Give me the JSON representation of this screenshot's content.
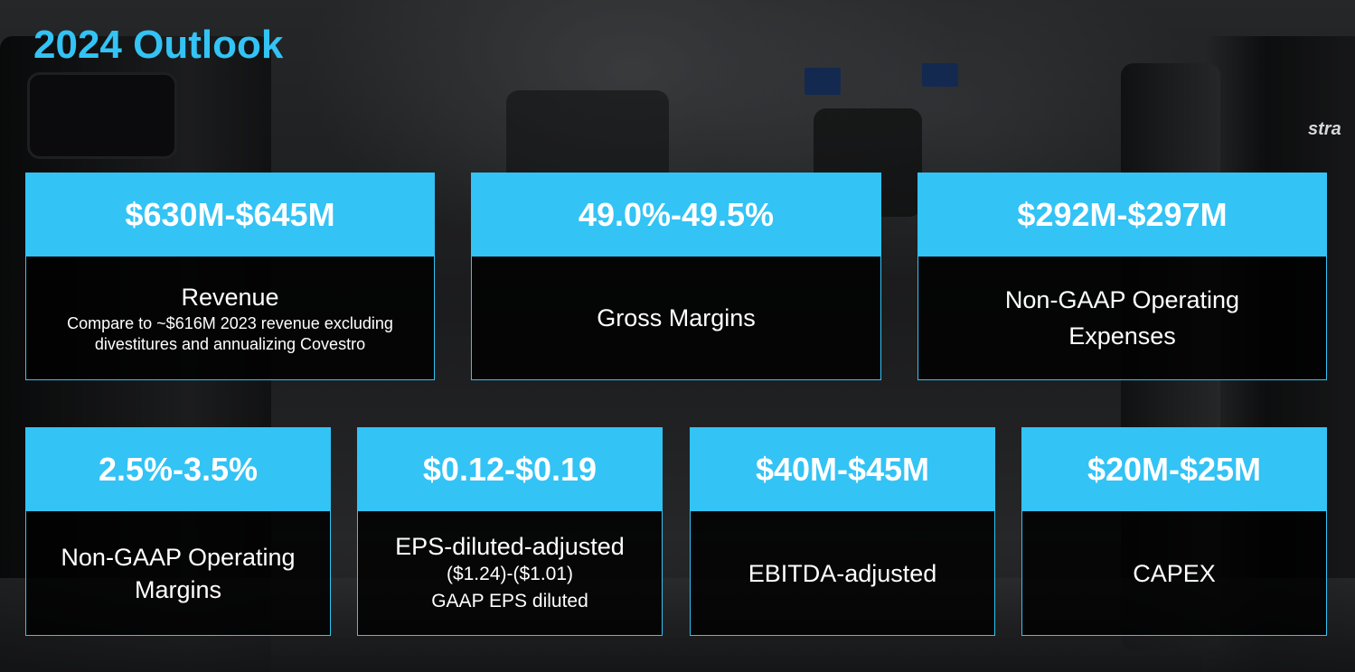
{
  "title": "2024 Outlook",
  "background": {
    "brand_text": "stra"
  },
  "colors": {
    "accent": "#33c3f5",
    "text": "#ffffff",
    "card_body": "#000000"
  },
  "cards": [
    {
      "value": "$630M-$645M",
      "label": "Revenue",
      "note": "Compare to ~$616M 2023 revenue excluding divestitures and annualizing Covestro"
    },
    {
      "value": "49.0%-49.5%",
      "label": "Gross Margins"
    },
    {
      "value": "$292M-$297M",
      "label": "Non-GAAP Operating Expenses"
    },
    {
      "value": "2.5%-3.5%",
      "label": "Non-GAAP Operating Margins"
    },
    {
      "value": "$0.12-$0.19",
      "label": "EPS-diluted-adjusted",
      "sub1": "($1.24)-($1.01)",
      "sub2": "GAAP EPS diluted"
    },
    {
      "value": "$40M-$45M",
      "label": "EBITDA-adjusted"
    },
    {
      "value": "$20M-$25M",
      "label": "CAPEX"
    }
  ]
}
